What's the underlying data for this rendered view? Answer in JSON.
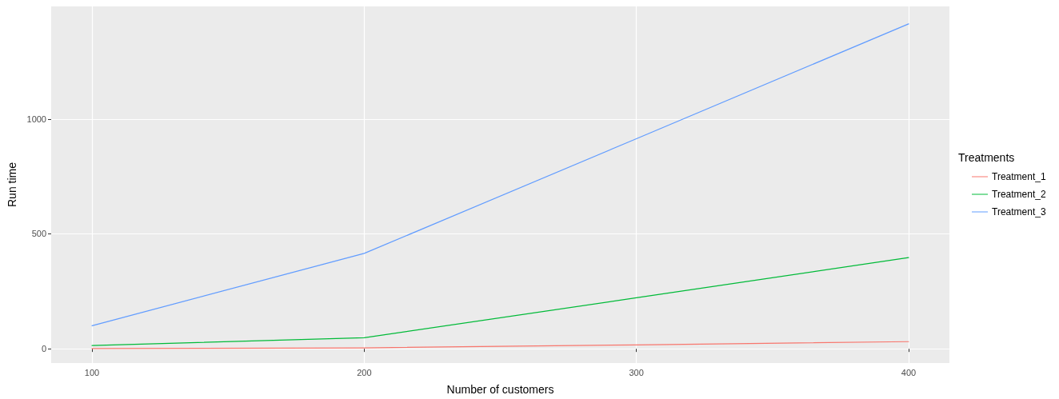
{
  "chart_data": {
    "type": "line",
    "xlabel": "Number of customers",
    "ylabel": "Run time",
    "legend_title": "Treatments",
    "x": [
      100,
      200,
      300,
      400
    ],
    "series": [
      {
        "name": "Treatment_1",
        "color": "#f8766d",
        "values": [
          1,
          4,
          17,
          31
        ]
      },
      {
        "name": "Treatment_2",
        "color": "#00ba38",
        "values": [
          14,
          48,
          222,
          397
        ]
      },
      {
        "name": "Treatment_3",
        "color": "#619cff",
        "values": [
          100,
          415,
          914,
          1414
        ]
      }
    ],
    "xlim": [
      85,
      415
    ],
    "xticks": [
      100,
      200,
      300,
      400
    ],
    "ylim": [
      -62,
      1490
    ],
    "yticks": [
      0,
      500,
      1000
    ],
    "grid": true,
    "legend": "right",
    "marker": "none",
    "line_style": "solid"
  }
}
